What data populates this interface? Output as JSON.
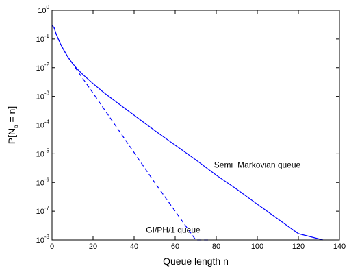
{
  "chart_data": {
    "type": "line",
    "title": "",
    "xlabel": "Queue length n",
    "ylabel": {
      "base": "P[N",
      "sub": "b",
      "rest": " = n]"
    },
    "xlim": [
      0,
      140
    ],
    "ylim": [
      1e-08,
      1
    ],
    "yscale": "log",
    "grid": false,
    "x_ticks": [
      "0",
      "20",
      "40",
      "60",
      "80",
      "100",
      "120",
      "140"
    ],
    "y_ticks": [
      {
        "base": "10",
        "exp": "0"
      },
      {
        "base": "10",
        "exp": "-1"
      },
      {
        "base": "10",
        "exp": "-2"
      },
      {
        "base": "10",
        "exp": "-3"
      },
      {
        "base": "10",
        "exp": "-4"
      },
      {
        "base": "10",
        "exp": "-5"
      },
      {
        "base": "10",
        "exp": "-6"
      },
      {
        "base": "10",
        "exp": "-7"
      },
      {
        "base": "10",
        "exp": "-8"
      }
    ],
    "series": [
      {
        "name": "Semi-Markovian queue",
        "color": "#0000ff",
        "dash": "solid",
        "x": [
          0,
          1,
          2,
          4,
          6,
          8,
          10,
          12,
          15,
          20,
          25,
          30,
          40,
          50,
          60,
          70,
          80,
          90,
          100,
          110,
          120,
          132
        ],
        "y": [
          0.3,
          0.25,
          0.15,
          0.07,
          0.038,
          0.022,
          0.014,
          0.0095,
          0.0058,
          0.0028,
          0.0014,
          0.00075,
          0.00022,
          6.5e-05,
          2e-05,
          6.2e-06,
          1.8e-06,
          5.8e-07,
          1.75e-07,
          5.4e-08,
          1.65e-08,
          1e-08
        ]
      },
      {
        "name": "GI/PH/1 queue",
        "color": "#0000ff",
        "dash": "dashed",
        "x": [
          0,
          1,
          2,
          4,
          6,
          8,
          10,
          12,
          15,
          20,
          30,
          40,
          50,
          60,
          70,
          76
        ],
        "y": [
          0.3,
          0.25,
          0.15,
          0.07,
          0.038,
          0.022,
          0.014,
          0.0085,
          0.0042,
          0.0013,
          0.00012,
          1.1e-05,
          1e-06,
          1e-07,
          1e-08,
          1e-08
        ]
      }
    ],
    "annotations": [
      {
        "text": "Semi−Markovian queue",
        "x": 100,
        "y": 3.3e-06
      },
      {
        "text": "GI/PH/1 queue",
        "x": 59,
        "y": 1.8e-08
      }
    ]
  }
}
